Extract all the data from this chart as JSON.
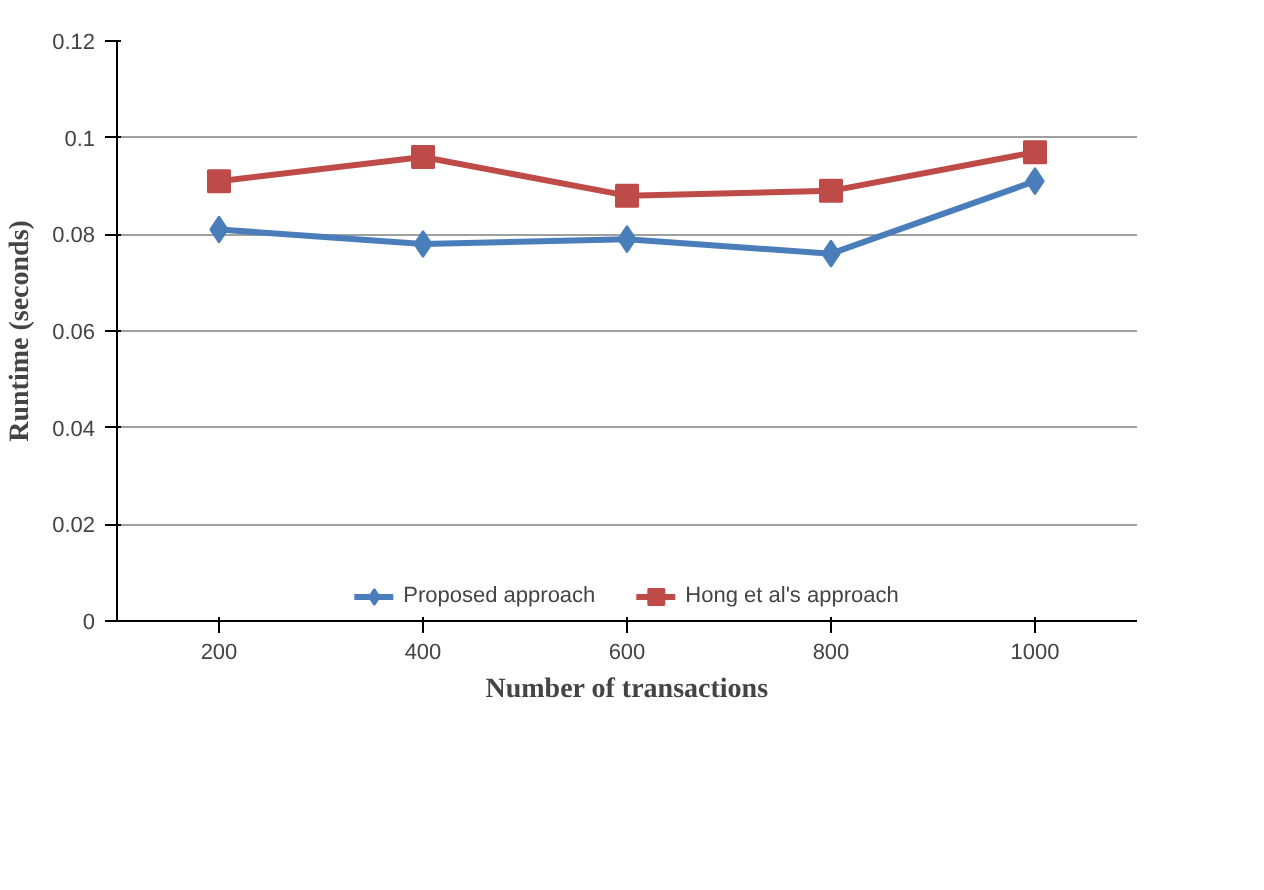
{
  "chart_data": {
    "type": "line",
    "xlabel": "Number of transactions",
    "ylabel": "Runtime (seconds)",
    "categories": [
      "200",
      "400",
      "600",
      "800",
      "1000"
    ],
    "series": [
      {
        "name": "Proposed approach",
        "color": "#4a7ebb",
        "marker": "diamond",
        "values": [
          0.081,
          0.078,
          0.079,
          0.076,
          0.091
        ]
      },
      {
        "name": "Hong et al's approach",
        "color": "#be4b48",
        "marker": "square",
        "values": [
          0.091,
          0.096,
          0.088,
          0.089,
          0.097
        ]
      }
    ],
    "ylim": [
      0,
      0.12
    ],
    "yticks": [
      0,
      0.02,
      0.04,
      0.06,
      0.08,
      0.1,
      0.12
    ],
    "grid": "y",
    "legend": "bottom",
    "line_style": "solid"
  }
}
